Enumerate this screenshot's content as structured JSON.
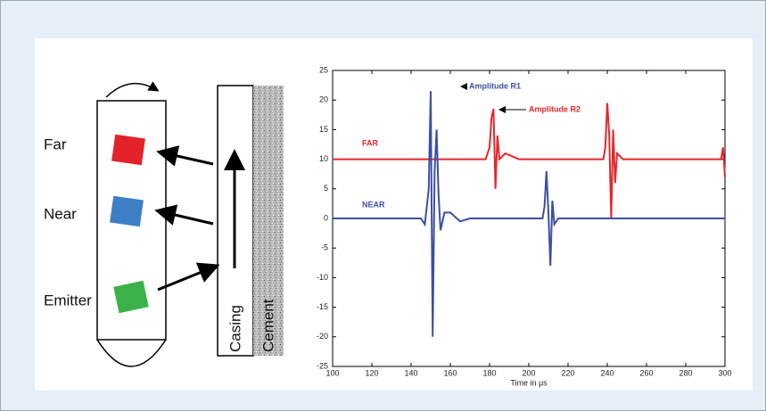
{
  "diagram": {
    "tool_labels": [
      "Far",
      "Near",
      "Emitter"
    ],
    "casing": "Casing",
    "cement": "Cement"
  },
  "chart_data": {
    "type": "line",
    "xlabel": "Time in μs",
    "annotations": [
      "Amplitude R1",
      "Amplitude R2"
    ],
    "x": [
      100,
      140,
      145,
      147,
      149,
      150,
      151,
      152,
      153,
      154,
      155,
      157,
      160,
      165,
      170,
      178,
      180,
      181,
      182,
      183,
      184,
      185,
      188,
      195,
      205,
      207,
      208,
      209,
      210,
      211,
      212,
      213,
      215,
      220,
      235,
      238,
      239,
      240,
      241,
      242,
      243,
      244,
      245,
      248,
      255,
      295,
      298,
      299,
      300
    ],
    "series": [
      {
        "name": "FAR",
        "color": "#e8262b",
        "values": [
          10,
          10,
          10,
          10,
          10,
          10,
          10,
          10,
          10,
          10,
          10,
          10,
          10,
          10,
          10,
          10,
          12,
          17,
          18.5,
          5,
          14,
          10,
          11,
          10,
          10,
          10,
          10,
          10,
          10,
          10,
          10,
          10,
          10,
          10,
          10,
          10,
          12,
          19.5,
          14,
          0,
          15,
          6,
          11,
          10,
          10,
          10,
          10,
          12,
          7
        ]
      },
      {
        "name": "NEAR",
        "color": "#3d4fa3",
        "values": [
          0,
          0,
          0,
          -1,
          5,
          21.5,
          -20,
          8,
          15,
          4,
          -2,
          1,
          1,
          -0.5,
          0,
          0,
          0,
          0,
          0,
          0,
          0,
          0,
          0,
          0,
          0,
          0,
          2,
          8,
          1,
          -8,
          3,
          -1,
          0,
          0,
          0,
          0,
          0,
          0,
          0,
          0,
          0,
          0,
          0,
          0,
          0,
          0,
          0,
          0,
          0
        ]
      }
    ],
    "xlim": [
      100,
      300
    ],
    "xticks": [
      100,
      120,
      140,
      160,
      180,
      200,
      220,
      240,
      260,
      280,
      300
    ],
    "ylim": [
      -25,
      25
    ],
    "yticks": [
      -25,
      -20,
      -15,
      -10,
      -5,
      0,
      5,
      10,
      15,
      20,
      25
    ]
  }
}
